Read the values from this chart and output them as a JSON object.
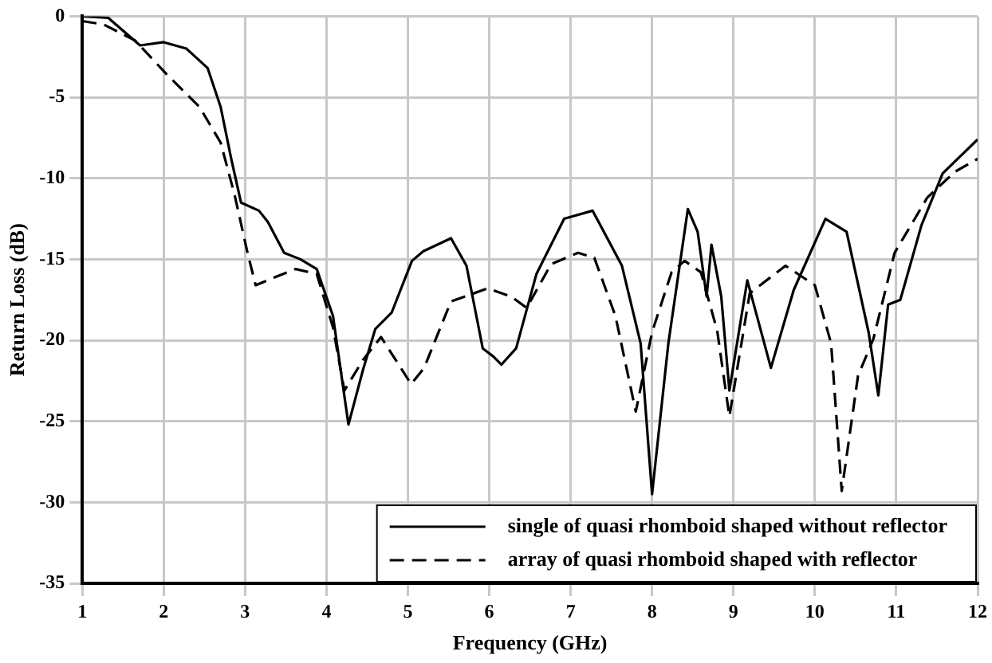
{
  "chart_data": {
    "type": "line",
    "xlabel": "Frequency (GHz)",
    "ylabel": "Return Loss (dB)",
    "xlim": [
      1,
      12
    ],
    "xticks": [
      1,
      2,
      3,
      4,
      5,
      6,
      7,
      8,
      9,
      10,
      11,
      12
    ],
    "ylim": [
      -35,
      0
    ],
    "yticks": [
      -35,
      -30,
      -25,
      -20,
      -15,
      -10,
      -5,
      0
    ],
    "grid": true,
    "legend": "bottom right",
    "marker": "none",
    "series": [
      {
        "name": "single of quasi rhomboid shaped without reflector",
        "color": "#000000",
        "line_style": "solid",
        "x": [
          1.0,
          1.32,
          1.71,
          2.0,
          2.28,
          2.54,
          2.7,
          2.83,
          2.95,
          3.17,
          3.28,
          3.48,
          3.68,
          3.88,
          4.08,
          4.27,
          4.45,
          4.6,
          4.8,
          5.05,
          5.19,
          5.53,
          5.72,
          5.92,
          6.05,
          6.15,
          6.33,
          6.58,
          6.92,
          7.27,
          7.63,
          7.86,
          8.0,
          8.2,
          8.44,
          8.56,
          8.67,
          8.73,
          8.85,
          8.95,
          9.17,
          9.46,
          9.74,
          10.13,
          10.39,
          10.66,
          10.78,
          10.9,
          11.05,
          11.31,
          11.57,
          12.0
        ],
        "values": [
          0,
          -0.1,
          -1.8,
          -1.6,
          -2.0,
          -3.2,
          -5.6,
          -8.8,
          -11.5,
          -12.0,
          -12.7,
          -14.6,
          -15.0,
          -15.6,
          -18.5,
          -25.2,
          -21.8,
          -19.3,
          -18.3,
          -15.1,
          -14.5,
          -13.7,
          -15.4,
          -20.5,
          -21.0,
          -21.5,
          -20.5,
          -15.9,
          -12.5,
          -12.0,
          -15.4,
          -20.2,
          -29.5,
          -20.2,
          -11.9,
          -13.3,
          -17.3,
          -14.1,
          -17.3,
          -23.1,
          -16.3,
          -21.7,
          -16.9,
          -12.5,
          -13.3,
          -19.5,
          -23.4,
          -17.8,
          -17.5,
          -12.9,
          -9.7,
          -7.6
        ]
      },
      {
        "name": "array of quasi rhomboid shaped with reflector",
        "color": "#000000",
        "line_style": "dashed",
        "x": [
          1.0,
          1.26,
          1.65,
          2.04,
          2.44,
          2.7,
          2.87,
          3.03,
          3.13,
          3.37,
          3.62,
          3.88,
          4.08,
          4.22,
          4.45,
          4.67,
          5.04,
          5.2,
          5.53,
          5.98,
          6.27,
          6.46,
          6.76,
          7.09,
          7.29,
          7.55,
          7.8,
          8.0,
          8.24,
          8.4,
          8.6,
          8.8,
          8.95,
          9.2,
          9.64,
          10.0,
          10.2,
          10.33,
          10.53,
          10.72,
          10.98,
          11.38,
          11.72,
          12.0
        ],
        "values": [
          -0.3,
          -0.5,
          -1.5,
          -3.6,
          -5.6,
          -7.8,
          -11.0,
          -14.6,
          -16.6,
          -16.1,
          -15.6,
          -15.9,
          -19.2,
          -23.1,
          -21.2,
          -19.8,
          -22.7,
          -21.7,
          -17.6,
          -16.8,
          -17.3,
          -18.0,
          -15.3,
          -14.6,
          -14.9,
          -18.5,
          -24.4,
          -19.5,
          -15.8,
          -15.1,
          -15.8,
          -19.4,
          -24.7,
          -17.1,
          -15.4,
          -16.6,
          -20.2,
          -29.3,
          -22.2,
          -19.9,
          -14.6,
          -11.2,
          -9.6,
          -8.8
        ]
      }
    ]
  }
}
